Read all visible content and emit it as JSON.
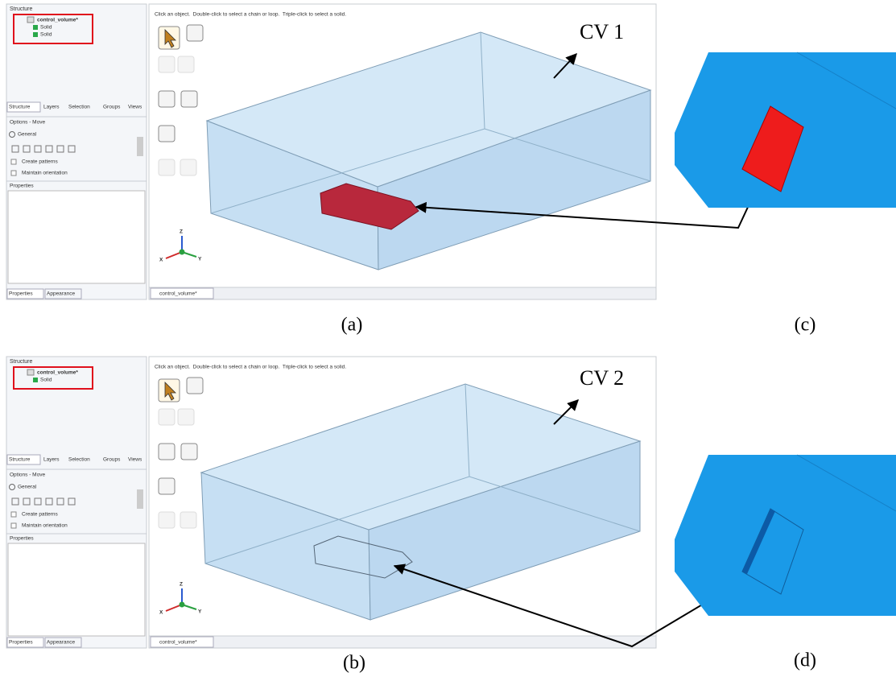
{
  "panels": [
    {
      "sidebar": {
        "structure_title": "Structure",
        "tree_root": "control_volume*",
        "tree_children": [
          "Solid",
          "Solid"
        ],
        "tabs": [
          "Structure",
          "Layers",
          "Selection",
          "Groups",
          "Views"
        ],
        "options_title": "Options - Move",
        "options_group": "General",
        "checkboxes": [
          "Create patterns",
          "Maintain orientation"
        ],
        "properties_title": "Properties",
        "bottom_tabs": [
          "Properties",
          "Appearance"
        ]
      },
      "viewport": {
        "hint": "Click an object.  Double-click to select a chain or loop.  Triple-click to select a solid.",
        "document_tab": "control_volume*",
        "axes": [
          "Z",
          "X",
          "Y"
        ],
        "volume_label": "CV 1"
      },
      "caption": "(a)",
      "detail_caption": "(c)"
    },
    {
      "sidebar": {
        "structure_title": "Structure",
        "tree_root": "control_volume*",
        "tree_children": [
          "Solid"
        ],
        "tabs": [
          "Structure",
          "Layers",
          "Selection",
          "Groups",
          "Views"
        ],
        "options_title": "Options - Move",
        "options_group": "General",
        "checkboxes": [
          "Create patterns",
          "Maintain orientation"
        ],
        "properties_title": "Properties",
        "bottom_tabs": [
          "Properties",
          "Appearance"
        ]
      },
      "viewport": {
        "hint": "Click an object.  Double-click to select a chain or loop.  Triple-click to select a solid.",
        "document_tab": "control_volume*",
        "axes": [
          "Z",
          "X",
          "Y"
        ],
        "volume_label": "CV 2"
      },
      "caption": "(b)",
      "detail_caption": "(d)"
    }
  ]
}
